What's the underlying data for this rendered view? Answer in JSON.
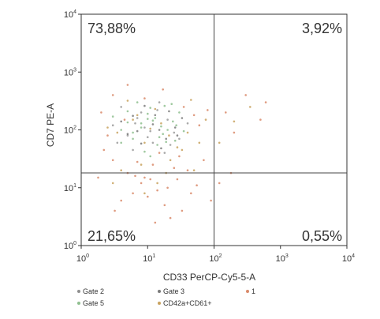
{
  "chart_data": {
    "type": "scatter",
    "title": "",
    "xlabel": "CD33 PerCP-Cy5-5-A",
    "ylabel": "CD7 PE-A",
    "x_scale": "log",
    "y_scale": "log",
    "xlim": [
      1,
      10000
    ],
    "ylim": [
      1,
      10000
    ],
    "x_ticks": [
      {
        "value": 1,
        "base": "10",
        "exp": "0"
      },
      {
        "value": 10,
        "base": "10",
        "exp": "1"
      },
      {
        "value": 100,
        "base": "10",
        "exp": "2"
      },
      {
        "value": 1000,
        "base": "10",
        "exp": "3"
      },
      {
        "value": 10000,
        "base": "10",
        "exp": "4"
      }
    ],
    "y_ticks": [
      {
        "value": 1,
        "base": "10",
        "exp": "0"
      },
      {
        "value": 10,
        "base": "10",
        "exp": "1"
      },
      {
        "value": 100,
        "base": "10",
        "exp": "2"
      },
      {
        "value": 1000,
        "base": "10",
        "exp": "3"
      },
      {
        "value": 10000,
        "base": "10",
        "exp": "4"
      }
    ],
    "quadrant_gates": {
      "x": 100,
      "y": 18
    },
    "quadrants": [
      {
        "position": "top-left",
        "label": "73,88%"
      },
      {
        "position": "top-right",
        "label": "3,92%"
      },
      {
        "position": "bottom-left",
        "label": "21,65%"
      },
      {
        "position": "bottom-right",
        "label": "0,55%"
      }
    ],
    "legend": [
      {
        "name": "Gate 2",
        "color": "#8f8f8f"
      },
      {
        "name": "Gate 3",
        "color": "#7a7a7a"
      },
      {
        "name": "1",
        "color": "#d98a6a"
      },
      {
        "name": "Gate 5",
        "color": "#8fbf8f"
      },
      {
        "name": "CD42a+CD61+",
        "color": "#c8a25e"
      }
    ],
    "legend_placement": "bottom",
    "grid": false,
    "series": [
      {
        "name": "Gate 2",
        "color": "#9a9a9a",
        "points": [
          [
            3,
            120
          ],
          [
            5,
            80
          ],
          [
            8,
            200
          ],
          [
            12,
            60
          ],
          [
            20,
            150
          ],
          [
            6,
            45
          ],
          [
            15,
            300
          ],
          [
            25,
            90
          ],
          [
            4,
            250
          ],
          [
            9,
            110
          ],
          [
            30,
            70
          ],
          [
            18,
            40
          ],
          [
            7,
            160
          ],
          [
            11,
            95
          ],
          [
            40,
            130
          ],
          [
            3.5,
            60
          ],
          [
            14,
            220
          ],
          [
            22,
            55
          ],
          [
            6.5,
            130
          ],
          [
            10,
            75
          ]
        ]
      },
      {
        "name": "Gate 3",
        "color": "#7a7a7a",
        "points": [
          [
            4,
            140
          ],
          [
            7,
            95
          ],
          [
            13,
            180
          ],
          [
            19,
            70
          ],
          [
            26,
            110
          ],
          [
            9,
            260
          ],
          [
            16,
            48
          ],
          [
            5,
            85
          ],
          [
            33,
            160
          ],
          [
            12,
            125
          ],
          [
            8,
            58
          ],
          [
            21,
            210
          ],
          [
            6,
            175
          ],
          [
            28,
            80
          ],
          [
            15,
            100
          ]
        ]
      },
      {
        "name": "1",
        "color": "#d98a6a",
        "points": [
          [
            3,
            30
          ],
          [
            5,
            18
          ],
          [
            8,
            12
          ],
          [
            12,
            25
          ],
          [
            20,
            10
          ],
          [
            6,
            8
          ],
          [
            15,
            40
          ],
          [
            25,
            22
          ],
          [
            4,
            6
          ],
          [
            9,
            15
          ],
          [
            30,
            35
          ],
          [
            18,
            5
          ],
          [
            7,
            28
          ],
          [
            11,
            14
          ],
          [
            40,
            20
          ],
          [
            3.2,
            4
          ],
          [
            14,
            9
          ],
          [
            22,
            3
          ],
          [
            6.5,
            16
          ],
          [
            10,
            7
          ],
          [
            150,
            200
          ],
          [
            300,
            400
          ],
          [
            500,
            150
          ],
          [
            200,
            90
          ],
          [
            600,
            300
          ],
          [
            2.5,
            80
          ],
          [
            4.5,
            150
          ],
          [
            9,
            350
          ],
          [
            17,
            500
          ],
          [
            35,
            250
          ],
          [
            50,
            180
          ],
          [
            60,
            120
          ],
          [
            80,
            220
          ],
          [
            2,
            200
          ],
          [
            3,
            400
          ],
          [
            5,
            600
          ],
          [
            28,
            14
          ],
          [
            45,
            8
          ],
          [
            70,
            30
          ],
          [
            1.8,
            15
          ],
          [
            2.2,
            45
          ],
          [
            13,
            2.5
          ],
          [
            33,
            4
          ],
          [
            55,
            11
          ],
          [
            90,
            6
          ],
          [
            120,
            12
          ],
          [
            180,
            18
          ]
        ]
      },
      {
        "name": "Gate 5",
        "color": "#8fbf8f",
        "points": [
          [
            4,
            100
          ],
          [
            6,
            70
          ],
          [
            10,
            190
          ],
          [
            14,
            55
          ],
          [
            24,
            140
          ],
          [
            7,
            300
          ],
          [
            17,
            85
          ],
          [
            3,
            170
          ],
          [
            35,
            95
          ],
          [
            11,
            240
          ],
          [
            8,
            130
          ],
          [
            19,
            62
          ],
          [
            5,
            210
          ],
          [
            27,
            120
          ],
          [
            13,
            160
          ],
          [
            9,
            42
          ],
          [
            23,
            280
          ],
          [
            16,
            115
          ],
          [
            6,
            90
          ],
          [
            12,
            145
          ],
          [
            20,
            100
          ],
          [
            4,
            60
          ],
          [
            30,
            200
          ],
          [
            15,
            75
          ],
          [
            8,
            110
          ],
          [
            11,
            35
          ],
          [
            18,
            260
          ],
          [
            5,
            135
          ],
          [
            26,
            65
          ],
          [
            10,
            155
          ]
        ]
      },
      {
        "name": "CD42a+CD61+",
        "color": "#c8a25e",
        "points": [
          [
            3.5,
            90
          ],
          [
            6,
            150
          ],
          [
            9,
            60
          ],
          [
            13,
            230
          ],
          [
            21,
            80
          ],
          [
            5,
            320
          ],
          [
            16,
            130
          ],
          [
            28,
            50
          ],
          [
            7,
            180
          ],
          [
            11,
            105
          ],
          [
            40,
            90
          ],
          [
            8,
            25
          ],
          [
            14,
            12
          ],
          [
            22,
            30
          ],
          [
            4,
            20
          ],
          [
            200,
            140
          ],
          [
            350,
            250
          ],
          [
            120,
            60
          ],
          [
            2.5,
            110
          ],
          [
            45,
            330
          ],
          [
            60,
            60
          ],
          [
            75,
            150
          ],
          [
            3,
            12
          ],
          [
            9,
            8
          ],
          [
            19,
            18
          ],
          [
            33,
            45
          ],
          [
            50,
            20
          ]
        ]
      }
    ]
  }
}
